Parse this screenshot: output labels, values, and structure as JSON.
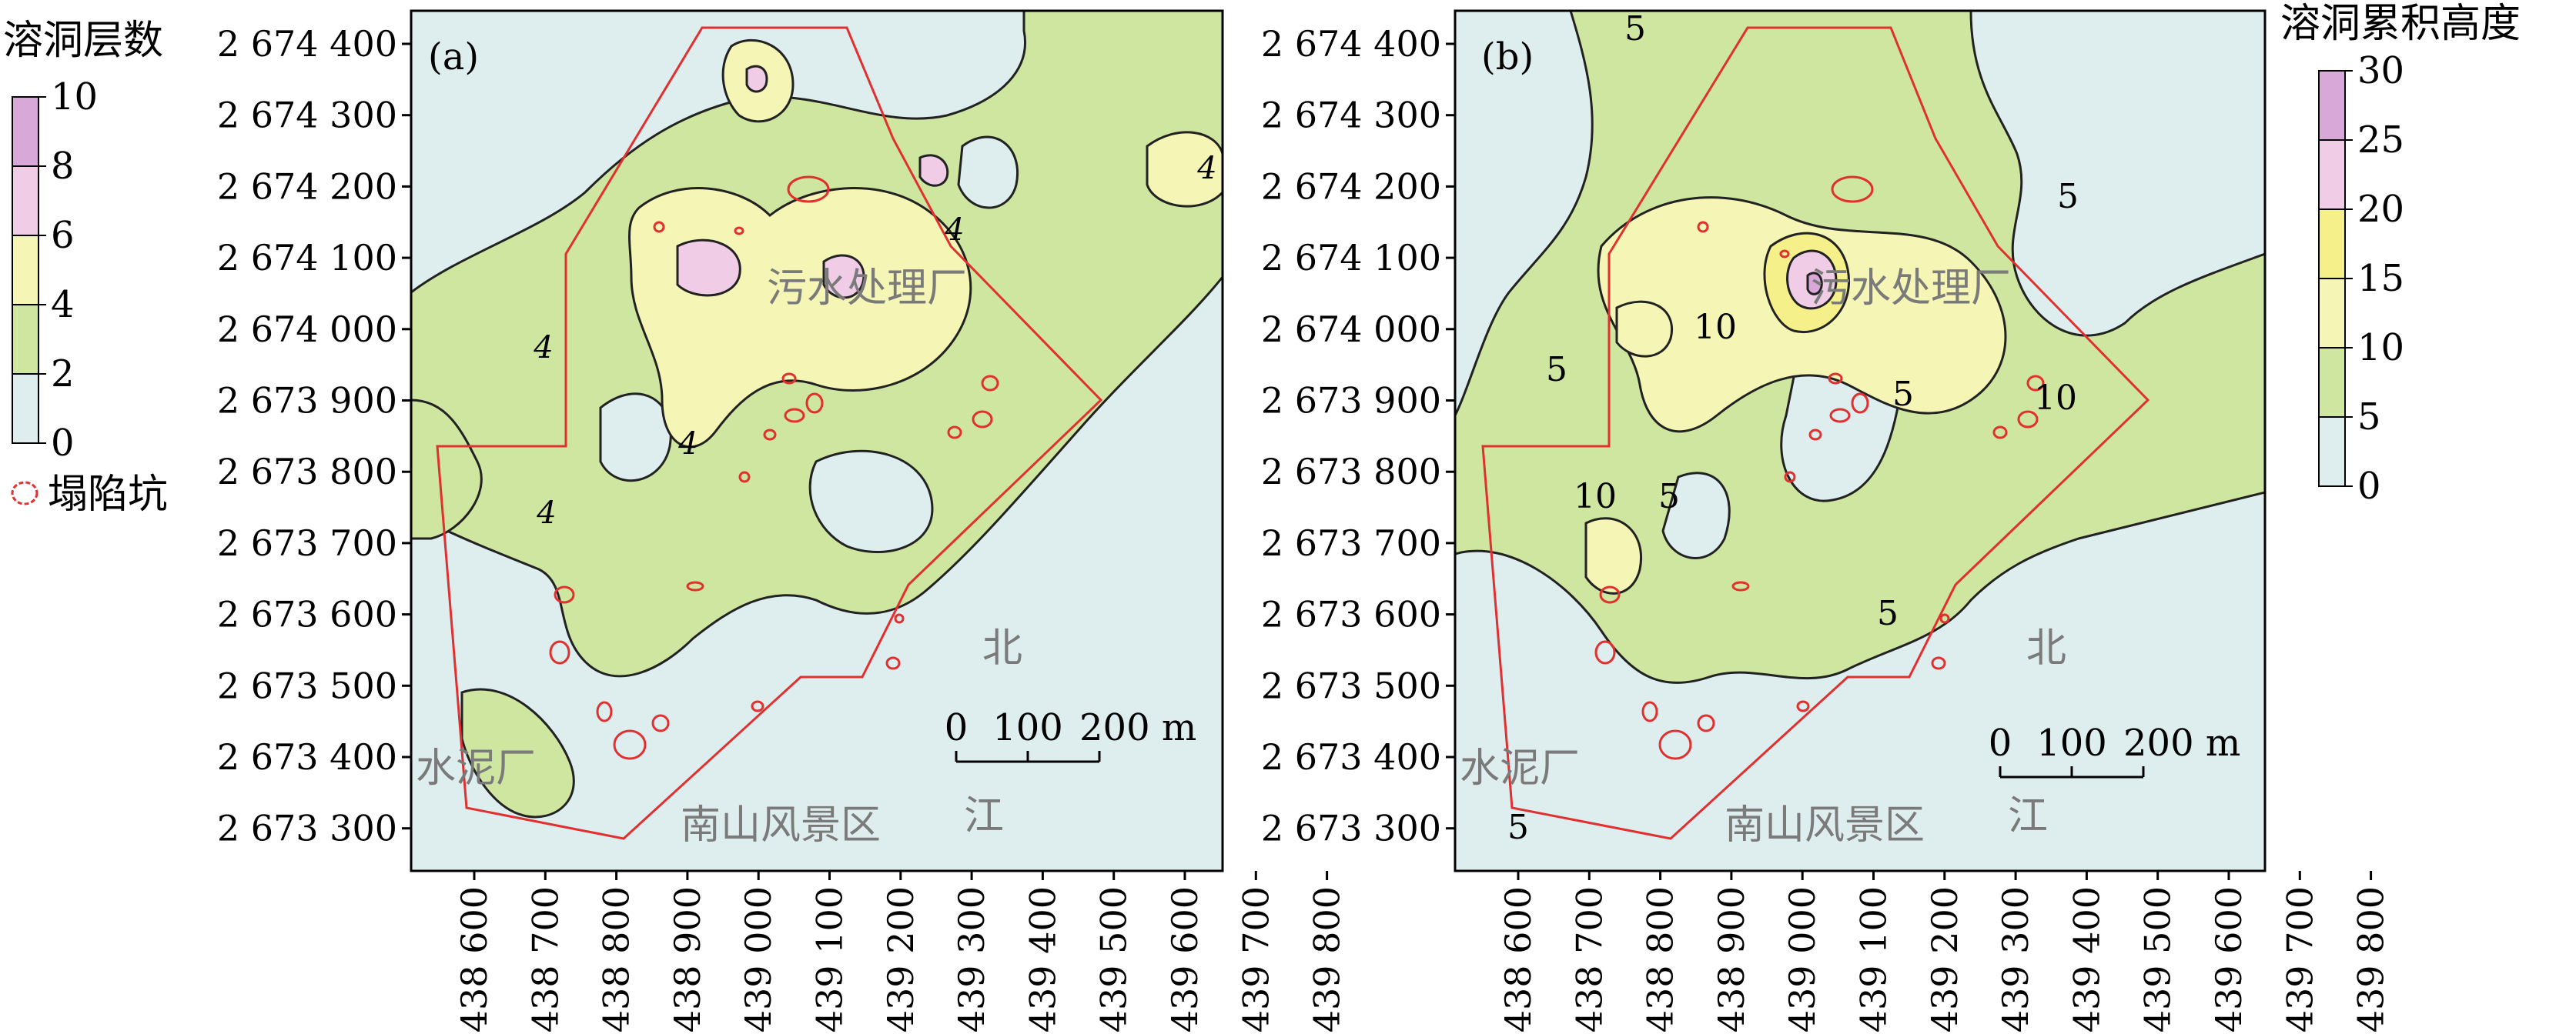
{
  "figure": {
    "panels": [
      {
        "id": "a",
        "label": "(a)",
        "contour_labels": [
          "4",
          "4",
          "4",
          "4",
          "4"
        ],
        "legend": {
          "title": "溶洞层数",
          "ticks": [
            "10",
            "8",
            "6",
            "4",
            "2",
            "0"
          ],
          "class_colors": [
            "#d8a8d8",
            "#f0cce6",
            "#f5f5b5",
            "#cfe6a0",
            "#deeeef"
          ],
          "sinkhole_label": "塌陷坑",
          "sinkhole_color": "#e03030"
        }
      },
      {
        "id": "b",
        "label": "(b)",
        "contour_labels": [
          "5",
          "5",
          "5",
          "5",
          "5",
          "5",
          "10",
          "10",
          "10"
        ],
        "legend": {
          "title": "溶洞累积高度",
          "ticks": [
            "30",
            "25",
            "20",
            "15",
            "10",
            "5",
            "0"
          ],
          "class_colors": [
            "#d8a8d8",
            "#f0cce6",
            "#f5f08a",
            "#f5f5b5",
            "#cfe6a0",
            "#deeeef"
          ]
        }
      }
    ],
    "y_ticks": [
      "2 674 400",
      "2 674 300",
      "2 674 200",
      "2 674 100",
      "2 674 000",
      "2 673 900",
      "2 673 800",
      "2 673 700",
      "2 673 600",
      "2 673 500",
      "2 673 400",
      "2 673 300"
    ],
    "x_ticks": [
      "438 600",
      "438 700",
      "438 800",
      "438 900",
      "439 000",
      "439 100",
      "439 200",
      "439 300",
      "439 400",
      "439 500",
      "439 600",
      "439 700",
      "439 800"
    ],
    "place_labels": {
      "sewage_plant": "污水处理厂",
      "cement_plant": "水泥厂",
      "scenic_area": "南山风景区",
      "river_top": "北",
      "river_bottom": "江"
    },
    "scale_bar": {
      "labels": [
        "0",
        "100",
        "200 m"
      ]
    },
    "boundary_color": "#e03030",
    "contour_color": "#222222"
  }
}
